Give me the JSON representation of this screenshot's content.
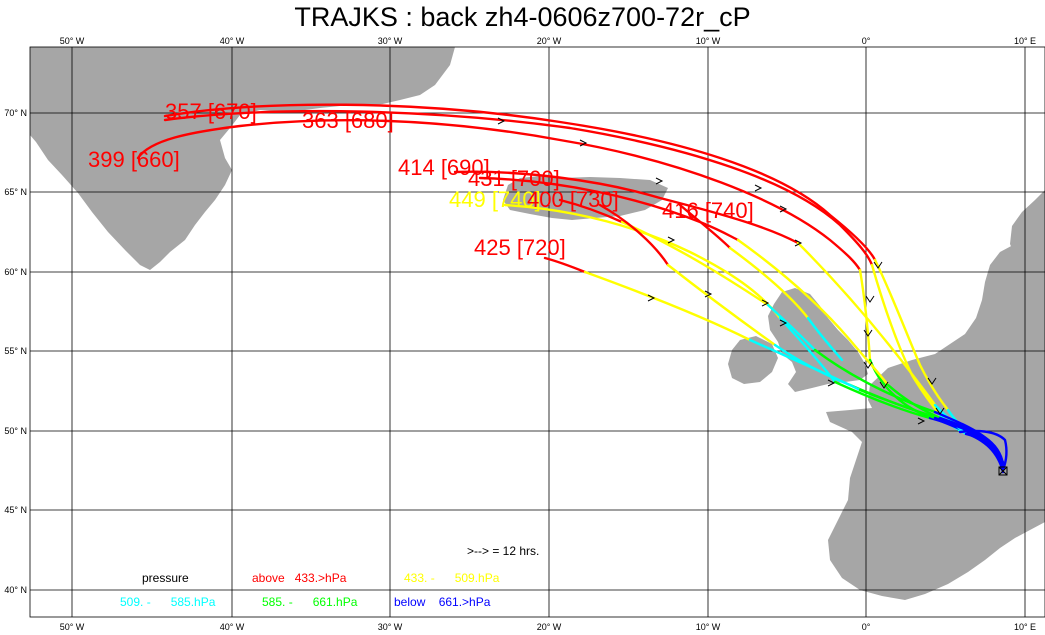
{
  "title": "TRAJKS : back zh4-0606z700-72r_cP",
  "axes": {
    "top_lon_labels": [
      "50° W",
      "40° W",
      "30° W",
      "20° W",
      "10° W",
      "0°",
      "10° E"
    ],
    "bottom_lon_labels": [
      "50° W",
      "40° W",
      "30° W",
      "20° W",
      "10° W",
      "0°",
      "10° E"
    ],
    "lat_labels": [
      "70° N",
      "65° N",
      "60° N",
      "55° N",
      "50° N",
      "45° N",
      "40° N"
    ]
  },
  "start_labels": [
    {
      "text": "357 [670]",
      "color": "#ff0000"
    },
    {
      "text": "363 [680]",
      "color": "#ff0000"
    },
    {
      "text": "399 [660]",
      "color": "#ff0000"
    },
    {
      "text": "414 [690]",
      "color": "#ff0000"
    },
    {
      "text": "431 [700]",
      "color": "#ff0000"
    },
    {
      "text": "449 [740]",
      "color": "#ffff00"
    },
    {
      "text": "400 [730]",
      "color": "#ff0000"
    },
    {
      "text": "416 [740]",
      "color": "#ff0000"
    },
    {
      "text": "425 [720]",
      "color": "#ff0000"
    }
  ],
  "legend": {
    "interval_note": ">--> = 12 hrs.",
    "pressure_title": "pressure",
    "ranges": [
      {
        "label": "above   433.>hPa",
        "color": "#ff0000"
      },
      {
        "label": "433. -      509.hPa",
        "color": "#ffff00"
      },
      {
        "label": "509. -      585.hPa",
        "color": "#00ffff"
      },
      {
        "label": "585. -      661.hPa",
        "color": "#00ff00"
      },
      {
        "label": "below    661.>hPa",
        "color": "#0000ff"
      }
    ]
  },
  "colors": {
    "land": "#a6a6a6",
    "sea": "#ffffff",
    "grid": "#000000",
    "above_433": "#ff0000",
    "433_509": "#ffff00",
    "509_585": "#00ffff",
    "585_661": "#00ff00",
    "below_661": "#0000ff"
  }
}
